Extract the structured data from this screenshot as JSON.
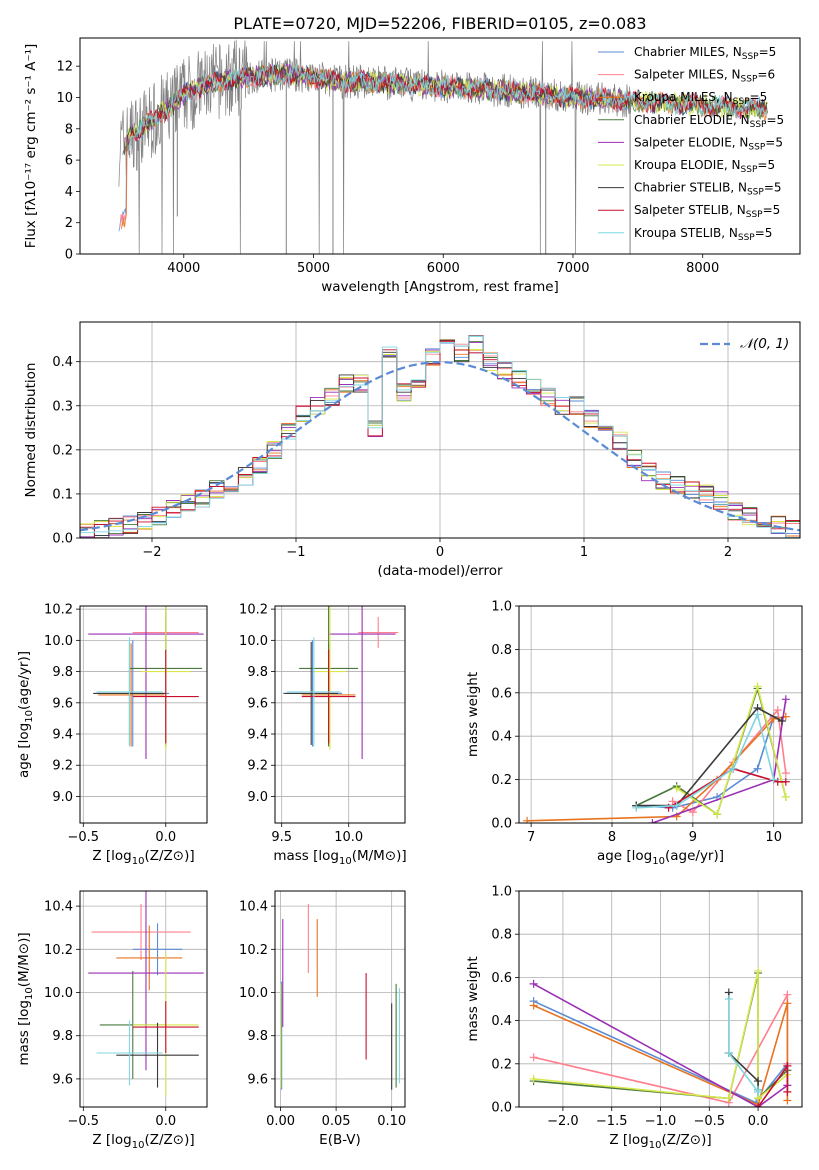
{
  "figure": {
    "title": "PLATE=0720, MJD=52206, FIBERID=0105, z=0.083"
  },
  "colors": {
    "chabrier_miles": "#5b8bd6",
    "salpeter_miles": "#ff7f8e",
    "kroupa_miles": "#e8731f",
    "chabrier_elodie": "#4a7a3c",
    "salpeter_elodie": "#9b2fb5",
    "kroupa_elodie": "#d6e84a",
    "chabrier_stelib": "#3a3a3a",
    "salpeter_stelib": "#c8102e",
    "kroupa_stelib": "#7fd6e0",
    "data": "#808080"
  },
  "chart_data": [
    {
      "id": "spectrum",
      "type": "line",
      "title": "PLATE=0720, MJD=52206, FIBERID=0105, z=0.083",
      "xlabel": "wavelength [Angstrom, rest frame]",
      "ylabel": "Flux [fλ10⁻¹⁷ erg cm⁻² s⁻¹ A⁻¹]",
      "xlim": [
        3200,
        8750
      ],
      "ylim": [
        0,
        13.8
      ],
      "xticks": [
        4000,
        5000,
        6000,
        7000,
        8000
      ],
      "yticks": [
        0,
        2,
        4,
        6,
        8,
        10,
        12
      ],
      "continuum": {
        "x": [
          3500,
          3600,
          3700,
          3800,
          3900,
          4000,
          4200,
          4400,
          4600,
          4800,
          5000,
          5200,
          5400,
          5600,
          5800,
          6000,
          6200,
          6400,
          6600,
          6800,
          7000,
          7200,
          7400,
          7600,
          7800,
          8000,
          8200,
          8400,
          8500
        ],
        "y": [
          6.8,
          7.6,
          8.2,
          8.8,
          9.4,
          10.2,
          10.9,
          11.2,
          11.4,
          11.5,
          11.3,
          11.0,
          11.0,
          10.9,
          10.8,
          10.7,
          10.6,
          10.5,
          10.3,
          10.2,
          10.0,
          9.9,
          9.8,
          9.7,
          9.6,
          9.5,
          9.4,
          9.3,
          9.2
        ]
      },
      "legend": [
        {
          "name": "Chabrier MILES, N_SSP=5",
          "main": "Chabrier MILES, N",
          "sub": "SSP",
          "tail": "=5",
          "color": "#5b8bd6"
        },
        {
          "name": "Salpeter MILES, N_SSP=6",
          "main": "Salpeter MILES, N",
          "sub": "SSP",
          "tail": "=6",
          "color": "#ff7f8e"
        },
        {
          "name": "Kroupa MILES, N_SSP=5",
          "main": "Kroupa MILES, N",
          "sub": "SSP",
          "tail": "=5",
          "color": "#e8731f"
        },
        {
          "name": "Chabrier ELODIE, N_SSP=5",
          "main": "Chabrier ELODIE, N",
          "sub": "SSP",
          "tail": "=5",
          "color": "#4a7a3c"
        },
        {
          "name": "Salpeter ELODIE, N_SSP=5",
          "main": "Salpeter ELODIE, N",
          "sub": "SSP",
          "tail": "=5",
          "color": "#9b2fb5"
        },
        {
          "name": "Kroupa ELODIE, N_SSP=5",
          "main": "Kroupa ELODIE, N",
          "sub": "SSP",
          "tail": "=5",
          "color": "#d6e84a"
        },
        {
          "name": "Chabrier STELIB, N_SSP=5",
          "main": "Chabrier STELIB, N",
          "sub": "SSP",
          "tail": "=5",
          "color": "#3a3a3a"
        },
        {
          "name": "Salpeter STELIB, N_SSP=5",
          "main": "Salpeter STELIB, N",
          "sub": "SSP",
          "tail": "=5",
          "color": "#c8102e"
        },
        {
          "name": "Kroupa STELIB, N_SSP=5",
          "main": "Kroupa STELIB, N",
          "sub": "SSP",
          "tail": "=5",
          "color": "#7fd6e0"
        }
      ],
      "legend_loc": "right",
      "grid": false
    },
    {
      "id": "residuals",
      "type": "histogram",
      "xlabel": "(data-model)/error",
      "ylabel": "Normed distribution",
      "xlim": [
        -2.5,
        2.5
      ],
      "ylim": [
        0,
        0.49
      ],
      "xticks": [
        -2,
        -1,
        0,
        1,
        2
      ],
      "yticks": [
        0.0,
        0.1,
        0.2,
        0.3,
        0.4
      ],
      "bin_edges": [
        -2.5,
        -2.4,
        -2.3,
        -2.2,
        -2.1,
        -2.0,
        -1.9,
        -1.8,
        -1.7,
        -1.6,
        -1.5,
        -1.4,
        -1.3,
        -1.2,
        -1.1,
        -1.0,
        -0.9,
        -0.8,
        -0.7,
        -0.6,
        -0.5,
        -0.4,
        -0.3,
        -0.2,
        -0.1,
        0.0,
        0.1,
        0.2,
        0.3,
        0.4,
        0.5,
        0.6,
        0.7,
        0.8,
        0.9,
        1.0,
        1.1,
        1.2,
        1.3,
        1.4,
        1.5,
        1.6,
        1.7,
        1.8,
        1.9,
        2.0,
        2.1,
        2.2,
        2.3,
        2.4,
        2.5
      ],
      "density": [
        0.015,
        0.02,
        0.025,
        0.03,
        0.04,
        0.05,
        0.065,
        0.08,
        0.09,
        0.11,
        0.125,
        0.14,
        0.165,
        0.2,
        0.24,
        0.28,
        0.3,
        0.32,
        0.35,
        0.35,
        0.25,
        0.43,
        0.33,
        0.35,
        0.41,
        0.43,
        0.42,
        0.44,
        0.4,
        0.38,
        0.36,
        0.34,
        0.32,
        0.3,
        0.3,
        0.27,
        0.24,
        0.22,
        0.18,
        0.15,
        0.13,
        0.12,
        0.11,
        0.1,
        0.085,
        0.06,
        0.05,
        0.04,
        0.03,
        0.02
      ],
      "gaussian_label": "𝒩(0, 1)",
      "gaussian_color": "#5b8bd6",
      "grid": true
    },
    {
      "id": "age_vs_Z",
      "type": "errorbar",
      "xlabel_main": "Z [log",
      "xlabel_sub": "10",
      "xlabel_tail": "(Z/Z⊙)]",
      "ylabel_main": "age  [log",
      "ylabel_sub": "10",
      "ylabel_tail": "(age/yr)]",
      "xlim": [
        -0.52,
        0.25
      ],
      "ylim": [
        8.83,
        10.22
      ],
      "xticks": [
        -0.5,
        0.0
      ],
      "yticks": [
        9.0,
        9.2,
        9.4,
        9.6,
        9.8,
        10.0,
        10.2
      ],
      "points": [
        {
          "x": -0.2,
          "y": 9.66,
          "xerr": 0.22,
          "yerr": 0.34,
          "color": "#5b8bd6"
        },
        {
          "x": 0.0,
          "y": 10.05,
          "xerr": 0.2,
          "yerr": 0.1,
          "color": "#ff7f8e"
        },
        {
          "x": -0.21,
          "y": 9.65,
          "xerr": 0.2,
          "yerr": 0.33,
          "color": "#e8731f"
        },
        {
          "x": 0.0,
          "y": 9.82,
          "xerr": 0.22,
          "yerr": 0.5,
          "color": "#4a7a3c"
        },
        {
          "x": -0.12,
          "y": 10.04,
          "xerr": 0.35,
          "yerr": 0.8,
          "color": "#9b2fb5"
        },
        {
          "x": 0.0,
          "y": 9.8,
          "xerr": 0.15,
          "yerr": 0.5,
          "color": "#d6e84a"
        },
        {
          "x": -0.22,
          "y": 9.66,
          "xerr": 0.22,
          "yerr": 0.33,
          "color": "#3a3a3a"
        },
        {
          "x": 0.0,
          "y": 9.64,
          "xerr": 0.2,
          "yerr": 0.3,
          "color": "#c8102e"
        },
        {
          "x": -0.22,
          "y": 9.67,
          "xerr": 0.2,
          "yerr": 0.35,
          "color": "#7fd6e0"
        }
      ],
      "grid": true
    },
    {
      "id": "age_vs_mass",
      "type": "errorbar",
      "xlabel_main": "mass [log",
      "xlabel_sub": "10",
      "xlabel_tail": "(M/M⊙)]",
      "xlim": [
        9.45,
        10.42
      ],
      "ylim": [
        8.83,
        10.22
      ],
      "xticks": [
        9.5,
        10.0
      ],
      "yticks": [
        9.0,
        9.2,
        9.4,
        9.6,
        9.8,
        10.0,
        10.2
      ],
      "points": [
        {
          "x": 9.73,
          "y": 9.66,
          "xerr": 0.22,
          "yerr": 0.34,
          "color": "#5b8bd6"
        },
        {
          "x": 10.22,
          "y": 10.05,
          "xerr": 0.15,
          "yerr": 0.1,
          "color": "#ff7f8e"
        },
        {
          "x": 9.85,
          "y": 9.65,
          "xerr": 0.2,
          "yerr": 0.33,
          "color": "#e8731f"
        },
        {
          "x": 9.85,
          "y": 9.82,
          "xerr": 0.22,
          "yerr": 0.5,
          "color": "#4a7a3c"
        },
        {
          "x": 10.1,
          "y": 10.04,
          "xerr": 0.25,
          "yerr": 0.8,
          "color": "#9b2fb5"
        },
        {
          "x": 9.86,
          "y": 9.8,
          "xerr": 0.12,
          "yerr": 0.5,
          "color": "#d6e84a"
        },
        {
          "x": 9.72,
          "y": 9.66,
          "xerr": 0.2,
          "yerr": 0.33,
          "color": "#3a3a3a"
        },
        {
          "x": 9.85,
          "y": 9.64,
          "xerr": 0.2,
          "yerr": 0.3,
          "color": "#c8102e"
        },
        {
          "x": 9.74,
          "y": 9.67,
          "xerr": 0.2,
          "yerr": 0.35,
          "color": "#7fd6e0"
        }
      ],
      "grid": true
    },
    {
      "id": "weight_vs_age",
      "type": "line",
      "xlabel_main": "age  [log",
      "xlabel_sub": "10",
      "xlabel_tail": "(age/yr)]",
      "ylabel": "mass weight",
      "xlim": [
        6.85,
        10.35
      ],
      "ylim": [
        0,
        1.0
      ],
      "xticks": [
        7,
        8,
        9,
        10
      ],
      "yticks": [
        0.0,
        0.2,
        0.4,
        0.6,
        0.8,
        1.0
      ],
      "series": [
        {
          "color": "#5b8bd6",
          "x": [
            8.3,
            8.75,
            9.3,
            9.8,
            10.0
          ],
          "y": [
            0.08,
            0.07,
            0.12,
            0.25,
            0.49
          ]
        },
        {
          "color": "#ff7f8e",
          "x": [
            8.75,
            9.0,
            9.5,
            10.05,
            10.15
          ],
          "y": [
            0.1,
            0.05,
            0.28,
            0.52,
            0.23
          ]
        },
        {
          "color": "#e8731f",
          "x": [
            6.95,
            8.8,
            9.3,
            10.0,
            10.15
          ],
          "y": [
            0.01,
            0.03,
            0.2,
            0.48,
            0.49
          ]
        },
        {
          "color": "#4a7a3c",
          "x": [
            8.3,
            8.8,
            9.3,
            9.8,
            10.15
          ],
          "y": [
            0.08,
            0.17,
            0.04,
            0.62,
            0.12
          ]
        },
        {
          "color": "#9b2fb5",
          "x": [
            8.5,
            10.0,
            10.15
          ],
          "y": [
            0.0,
            0.2,
            0.57
          ]
        },
        {
          "color": "#d6e84a",
          "x": [
            8.8,
            9.3,
            9.8,
            10.15
          ],
          "y": [
            0.16,
            0.04,
            0.63,
            0.12
          ]
        },
        {
          "color": "#3a3a3a",
          "x": [
            8.3,
            8.8,
            9.8,
            10.1
          ],
          "y": [
            0.08,
            0.08,
            0.53,
            0.47
          ]
        },
        {
          "color": "#c8102e",
          "x": [
            8.7,
            9.5,
            10.05,
            10.15
          ],
          "y": [
            0.07,
            0.25,
            0.19,
            0.19
          ]
        },
        {
          "color": "#7fd6e0",
          "x": [
            8.3,
            8.8,
            9.5,
            9.8,
            10.0
          ],
          "y": [
            0.07,
            0.08,
            0.25,
            0.5,
            0.2
          ]
        }
      ],
      "grid": true
    },
    {
      "id": "mass_vs_Z",
      "type": "errorbar",
      "xlabel_main": "Z [log",
      "xlabel_sub": "10",
      "xlabel_tail": "(Z/Z⊙)]",
      "ylabel_main": "mass [log",
      "ylabel_sub": "10",
      "ylabel_tail": "(M/M⊙)]",
      "xlim": [
        -0.52,
        0.25
      ],
      "ylim": [
        9.47,
        10.47
      ],
      "xticks": [
        -0.5,
        0.0
      ],
      "yticks": [
        9.6,
        9.8,
        10.0,
        10.2,
        10.4
      ],
      "points": [
        {
          "x": -0.05,
          "y": 10.2,
          "xerr": 0.15,
          "yerr": 0.12,
          "color": "#5b8bd6"
        },
        {
          "x": -0.15,
          "y": 10.28,
          "xerr": 0.3,
          "yerr": 0.13,
          "color": "#ff7f8e"
        },
        {
          "x": -0.1,
          "y": 10.16,
          "xerr": 0.2,
          "yerr": 0.15,
          "color": "#e8731f"
        },
        {
          "x": -0.2,
          "y": 9.85,
          "xerr": 0.2,
          "yerr": 0.25,
          "color": "#4a7a3c"
        },
        {
          "x": -0.12,
          "y": 10.09,
          "xerr": 0.35,
          "yerr": 0.45,
          "color": "#9b2fb5"
        },
        {
          "x": 0.0,
          "y": 9.85,
          "xerr": 0.2,
          "yerr": 0.33,
          "color": "#d6e84a"
        },
        {
          "x": -0.05,
          "y": 9.71,
          "xerr": 0.25,
          "yerr": 0.15,
          "color": "#3a3a3a"
        },
        {
          "x": 0.0,
          "y": 9.84,
          "xerr": 0.2,
          "yerr": 0.12,
          "color": "#c8102e"
        },
        {
          "x": -0.22,
          "y": 9.72,
          "xerr": 0.2,
          "yerr": 0.15,
          "color": "#7fd6e0"
        }
      ],
      "grid": true
    },
    {
      "id": "mass_vs_ebv",
      "type": "errorbar",
      "xlabel": "E(B-V)",
      "xlim": [
        -0.005,
        0.112
      ],
      "ylim": [
        9.47,
        10.47
      ],
      "xticks": [
        0.0,
        0.05,
        0.1
      ],
      "xticklabels": [
        "0.00",
        "0.05",
        "0.10"
      ],
      "yticks": [
        9.6,
        9.8,
        10.0,
        10.2,
        10.4
      ],
      "points": [
        {
          "x": 0.001,
          "y": 9.8,
          "yerr": 0.25,
          "color": "#5b8bd6"
        },
        {
          "x": 0.025,
          "y": 10.25,
          "yerr": 0.16,
          "color": "#ff7f8e"
        },
        {
          "x": 0.033,
          "y": 10.16,
          "yerr": 0.18,
          "color": "#e8731f"
        },
        {
          "x": 0.104,
          "y": 9.8,
          "yerr": 0.24,
          "color": "#4a7a3c"
        },
        {
          "x": 0.002,
          "y": 10.09,
          "yerr": 0.25,
          "color": "#9b2fb5"
        },
        {
          "x": 0.0,
          "y": 9.8,
          "yerr": 0.24,
          "color": "#d6e84a"
        },
        {
          "x": 0.1,
          "y": 9.75,
          "yerr": 0.2,
          "color": "#3a3a3a"
        },
        {
          "x": 0.077,
          "y": 9.89,
          "yerr": 0.2,
          "color": "#c8102e"
        },
        {
          "x": 0.107,
          "y": 9.8,
          "yerr": 0.22,
          "color": "#7fd6e0"
        }
      ],
      "grid": true
    },
    {
      "id": "weight_vs_Z",
      "type": "line",
      "xlabel_main": "Z [log",
      "xlabel_sub": "10",
      "xlabel_tail": "(Z/Z⊙)]",
      "ylabel": "mass weight",
      "xlim": [
        -2.45,
        0.45
      ],
      "ylim": [
        0,
        1.0
      ],
      "xticks": [
        -2.0,
        -1.5,
        -1.0,
        -0.5,
        0.0
      ],
      "xticklabels": [
        "−2.0",
        "−1.5",
        "−1.0",
        "−0.5",
        "0.0"
      ],
      "yticks": [
        0.0,
        0.2,
        0.4,
        0.6,
        0.8,
        1.0
      ],
      "series": [
        {
          "color": "#5b8bd6",
          "x": [
            -2.3,
            -0.02,
            0.3
          ],
          "y": [
            0.49,
            0.02,
            0.2
          ]
        },
        {
          "color": "#ff7f8e",
          "x": [
            -2.3,
            -0.3,
            0.3,
            0.3
          ],
          "y": [
            0.23,
            0.02,
            0.52,
            0.2
          ]
        },
        {
          "color": "#e8731f",
          "x": [
            -2.3,
            0.0,
            0.3,
            0.3
          ],
          "y": [
            0.47,
            0.01,
            0.48,
            0.03
          ]
        },
        {
          "color": "#4a7a3c",
          "x": [
            -2.3,
            -0.3,
            0.0,
            0.0,
            0.3
          ],
          "y": [
            0.12,
            0.04,
            0.62,
            0.04,
            0.17
          ]
        },
        {
          "color": "#9b2fb5",
          "x": [
            -2.3,
            0.0,
            0.3,
            0.3
          ],
          "y": [
            0.57,
            0.0,
            0.1,
            0.19
          ]
        },
        {
          "color": "#d6e84a",
          "x": [
            -2.3,
            -0.3,
            0.0,
            0.0,
            0.3
          ],
          "y": [
            0.13,
            0.04,
            0.63,
            0.04,
            0.15
          ]
        },
        {
          "color": "#3a3a3a",
          "x": [
            -0.3,
            -0.3,
            0.0,
            0.0
          ],
          "y": [
            0.53,
            0.25,
            0.12,
            0.08
          ]
        },
        {
          "color": "#c8102e",
          "x": [
            0.0,
            0.3,
            0.3
          ],
          "y": [
            0.0,
            0.19,
            0.07
          ]
        },
        {
          "color": "#7fd6e0",
          "x": [
            -0.3,
            -0.3,
            0.0,
            0.0
          ],
          "y": [
            0.5,
            0.25,
            0.07,
            0.08
          ]
        }
      ],
      "grid": true
    }
  ]
}
